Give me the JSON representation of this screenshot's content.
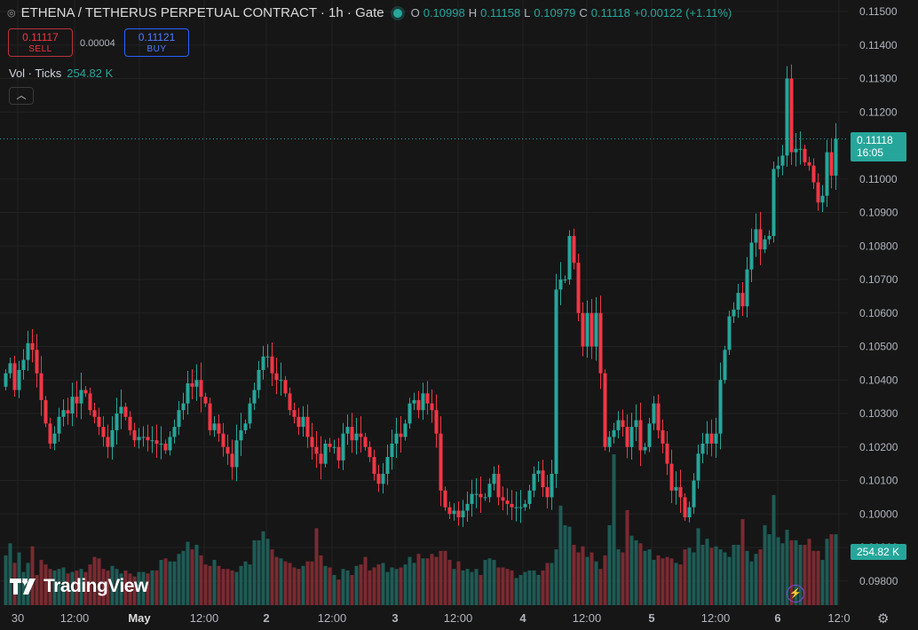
{
  "header": {
    "icon": "exchange-icon",
    "symbol_line": "ETHENA / TETHERUS PERPETUAL CONTRACT · 1h · Gate",
    "status_color": "#26a69a",
    "ohlc": {
      "o_label": "O",
      "o": "0.10998",
      "h_label": "H",
      "h": "0.11158",
      "l_label": "L",
      "l": "0.10979",
      "c_label": "C",
      "c": "0.11118",
      "change": "+0.00122 (+1.11%)"
    }
  },
  "trade": {
    "sell_price": "0.11117",
    "sell_label": "SELL",
    "spread": "0.00004",
    "buy_price": "0.11121",
    "buy_label": "BUY"
  },
  "volume_legend": {
    "label": "Vol · Ticks",
    "value": "254.82 K"
  },
  "price_axis": [
    "0.11500",
    "0.11400",
    "0.11300",
    "0.11200",
    "0.11000",
    "0.10900",
    "0.10800",
    "0.10700",
    "0.10600",
    "0.10500",
    "0.10400",
    "0.10300",
    "0.10200",
    "0.10100",
    "0.10000",
    "0.09900",
    "0.09800"
  ],
  "time_axis": [
    "30",
    "12:00",
    "May",
    "12:00",
    "2",
    "12:00",
    "3",
    "12:00",
    "4",
    "12:00",
    "5",
    "12:00",
    "6",
    "12:0"
  ],
  "last_price": {
    "price": "0.11118",
    "countdown": "16:05"
  },
  "last_volume": "254.82 K",
  "branding": {
    "logo_text": "TradingView"
  },
  "colors": {
    "up": "#26a69a",
    "down": "#f23645",
    "background": "#161616"
  },
  "chart_data": {
    "type": "candlestick",
    "timeframe": "1h",
    "ylim": [
      0.0975,
      0.1151
    ],
    "closes": [
      0.1042,
      0.1045,
      0.1037,
      0.1043,
      0.1046,
      0.1051,
      0.1049,
      0.1042,
      0.1034,
      0.1027,
      0.1021,
      0.1024,
      0.1029,
      0.1031,
      0.103,
      0.1035,
      0.1033,
      0.1037,
      0.1036,
      0.1031,
      0.1029,
      0.1026,
      0.1023,
      0.102,
      0.1025,
      0.103,
      0.1032,
      0.1029,
      0.1025,
      0.1022,
      0.1023,
      0.1023,
      0.1022,
      0.1022,
      0.1021,
      0.1021,
      0.1019,
      0.1023,
      0.1026,
      0.1031,
      0.1033,
      0.1039,
      0.1038,
      0.104,
      0.1035,
      0.1033,
      0.1025,
      0.1027,
      0.1024,
      0.102,
      0.1018,
      0.1014,
      0.1022,
      0.1025,
      0.1027,
      0.1033,
      0.1037,
      0.1043,
      0.1047,
      0.1047,
      0.1042,
      0.104,
      0.104,
      0.1036,
      0.1031,
      0.1029,
      0.1026,
      0.1029,
      0.1023,
      0.102,
      0.1018,
      0.1015,
      0.1021,
      0.102,
      0.102,
      0.1016,
      0.1024,
      0.1026,
      0.1022,
      0.1024,
      0.1023,
      0.102,
      0.1017,
      0.1012,
      0.1009,
      0.1012,
      0.1017,
      0.1021,
      0.1024,
      0.1023,
      0.1027,
      0.1033,
      0.1034,
      0.1031,
      0.1036,
      0.1033,
      0.1031,
      0.1024,
      0.1007,
      0.1002,
      0.1,
      0.1001,
      0.0999,
      0.1001,
      0.1003,
      0.1006,
      0.1006,
      0.1005,
      0.1005,
      0.1009,
      0.1012,
      0.1005,
      0.1004,
      0.1003,
      0.1002,
      0.1002,
      0.1002,
      0.1003,
      0.1007,
      0.1012,
      0.1013,
      0.1008,
      0.1005,
      0.1012,
      0.1067,
      0.107,
      0.107,
      0.1083,
      0.1075,
      0.106,
      0.105,
      0.106,
      0.105,
      0.106,
      0.1042,
      0.102,
      0.1023,
      0.1025,
      0.1028,
      0.1026,
      0.102,
      0.1026,
      0.1028,
      0.1019,
      0.102,
      0.1027,
      0.1033,
      0.1025,
      0.1021,
      0.1015,
      0.1007,
      0.1008,
      0.1005,
      0.0999,
      0.1002,
      0.101,
      0.1018,
      0.1021,
      0.1024,
      0.1021,
      0.1024,
      0.104,
      0.1049,
      0.1059,
      0.1061,
      0.1066,
      0.1062,
      0.1073,
      0.1081,
      0.1085,
      0.1079,
      0.1082,
      0.1083,
      0.1103,
      0.1104,
      0.1107,
      0.113,
      0.1108,
      0.1109,
      0.1109,
      0.1105,
      0.1104,
      0.1099,
      0.1093,
      0.1095,
      0.1108,
      0.1101,
      0.1112
    ],
    "volumes": [
      0.33,
      0.41,
      0.28,
      0.35,
      0.22,
      0.28,
      0.39,
      0.2,
      0.3,
      0.27,
      0.24,
      0.23,
      0.24,
      0.25,
      0.21,
      0.22,
      0.23,
      0.24,
      0.22,
      0.27,
      0.32,
      0.31,
      0.24,
      0.23,
      0.26,
      0.24,
      0.21,
      0.23,
      0.21,
      0.19,
      0.22,
      0.22,
      0.21,
      0.23,
      0.23,
      0.3,
      0.31,
      0.29,
      0.29,
      0.34,
      0.36,
      0.42,
      0.37,
      0.4,
      0.33,
      0.27,
      0.26,
      0.3,
      0.26,
      0.24,
      0.24,
      0.23,
      0.22,
      0.26,
      0.29,
      0.27,
      0.43,
      0.43,
      0.49,
      0.44,
      0.37,
      0.32,
      0.31,
      0.29,
      0.28,
      0.25,
      0.24,
      0.26,
      0.29,
      0.29,
      0.51,
      0.33,
      0.26,
      0.25,
      0.2,
      0.17,
      0.24,
      0.23,
      0.2,
      0.26,
      0.27,
      0.32,
      0.23,
      0.25,
      0.27,
      0.28,
      0.22,
      0.25,
      0.24,
      0.25,
      0.27,
      0.32,
      0.28,
      0.34,
      0.31,
      0.31,
      0.34,
      0.32,
      0.36,
      0.36,
      0.3,
      0.24,
      0.29,
      0.23,
      0.24,
      0.22,
      0.24,
      0.2,
      0.3,
      0.31,
      0.3,
      0.25,
      0.25,
      0.24,
      0.23,
      0.18,
      0.2,
      0.22,
      0.23,
      0.23,
      0.2,
      0.23,
      0.28,
      0.28,
      0.37,
      0.66,
      0.53,
      0.52,
      0.4,
      0.35,
      0.39,
      0.32,
      0.35,
      0.29,
      0.24,
      0.33,
      0.53,
      1.0,
      0.37,
      0.35,
      0.63,
      0.46,
      0.43,
      0.41,
      0.36,
      0.37,
      0.3,
      0.33,
      0.31,
      0.32,
      0.31,
      0.28,
      0.27,
      0.37,
      0.38,
      0.35,
      0.51,
      0.4,
      0.44,
      0.38,
      0.39,
      0.37,
      0.35,
      0.32,
      0.4,
      0.4,
      0.57,
      0.36,
      0.29,
      0.34,
      0.37,
      0.53,
      0.47,
      0.73,
      0.45,
      0.41,
      0.5,
      0.43,
      0.43,
      0.4,
      0.4,
      0.44,
      0.36,
      0.36,
      0.3,
      0.44,
      0.47,
      0.47
    ]
  }
}
